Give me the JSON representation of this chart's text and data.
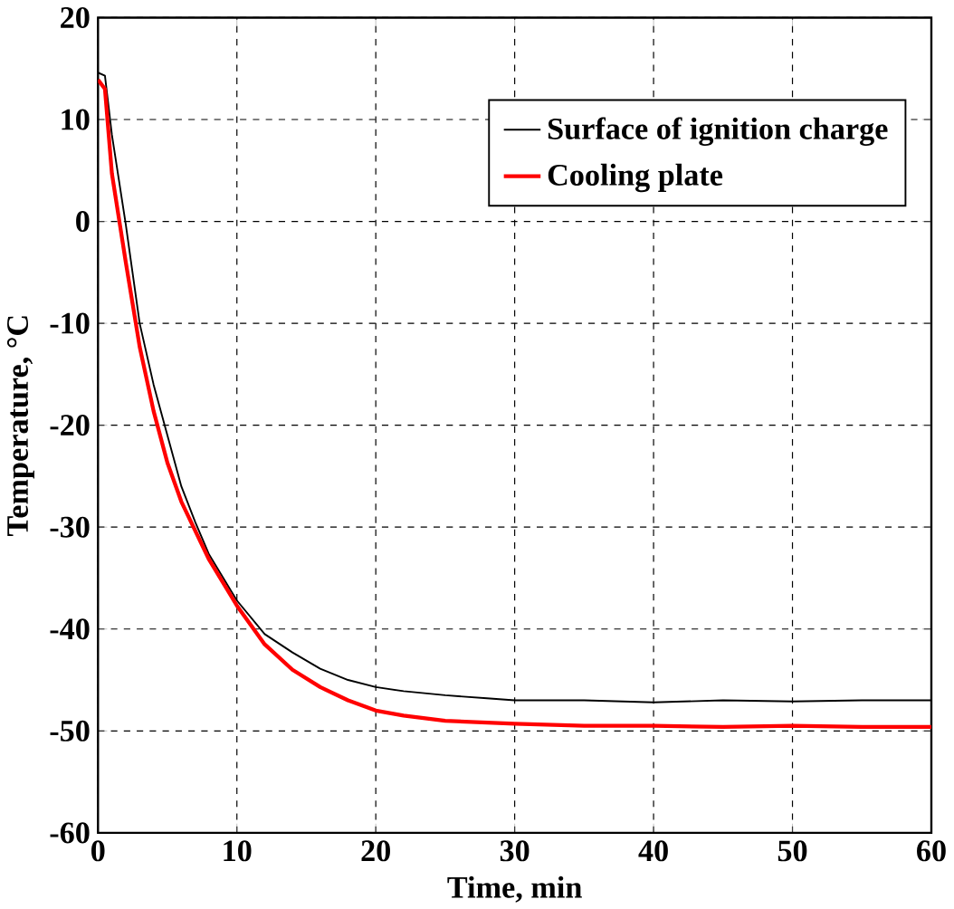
{
  "chart_data": {
    "type": "line",
    "xlabel": "Time, min",
    "ylabel": "Temperature, °C",
    "xlim": [
      0,
      60
    ],
    "ylim": [
      -60,
      20
    ],
    "xticks": [
      0,
      10,
      20,
      30,
      40,
      50,
      60
    ],
    "yticks": [
      -60,
      -50,
      -40,
      -30,
      -20,
      -10,
      0,
      10,
      20
    ],
    "grid": true,
    "legend": "top right",
    "marker": "none",
    "line_style": "solid",
    "series": [
      {
        "name": "Surface of ignition charge",
        "color": "#000000",
        "x": [
          0,
          0.5,
          1,
          2,
          3,
          4,
          5,
          6,
          7,
          8,
          10,
          12,
          14,
          16,
          18,
          20,
          22,
          25,
          28,
          30,
          35,
          40,
          45,
          50,
          55,
          60
        ],
        "values": [
          14.6,
          14.3,
          8.5,
          -0.3,
          -10,
          -16,
          -21,
          -26,
          -29.5,
          -32.7,
          -37.2,
          -40.5,
          -42.3,
          -43.9,
          -45,
          -45.7,
          -46.1,
          -46.5,
          -46.8,
          -47,
          -47,
          -47.2,
          -47,
          -47.1,
          -47,
          -47
        ]
      },
      {
        "name": "Cooling plate",
        "color": "#ff0000",
        "x": [
          0,
          0.5,
          1,
          2,
          3,
          4,
          5,
          6,
          8,
          10,
          12,
          14,
          16,
          18,
          20,
          22,
          25,
          30,
          35,
          40,
          45,
          50,
          55,
          60
        ],
        "values": [
          13.9,
          13,
          4.7,
          -4,
          -12.3,
          -18.6,
          -23.7,
          -27.5,
          -33.2,
          -37.7,
          -41.5,
          -44,
          -45.7,
          -47,
          -48,
          -48.5,
          -49,
          -49.3,
          -49.5,
          -49.5,
          -49.6,
          -49.5,
          -49.6,
          -49.6
        ]
      }
    ]
  }
}
